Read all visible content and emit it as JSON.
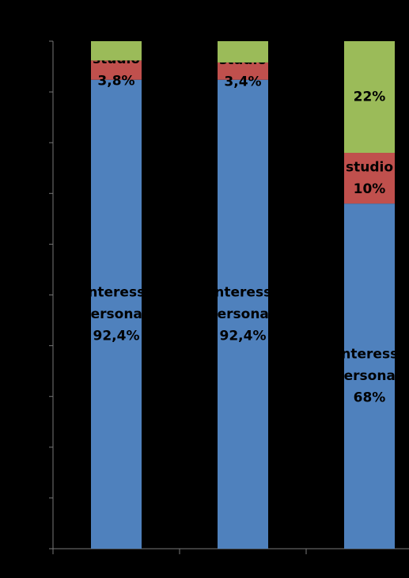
{
  "chart_data": {
    "type": "stacked_bar",
    "categories": [
      null,
      null,
      null
    ],
    "series": [
      {
        "name_lines": [
          "Interessi",
          "personali"
        ],
        "color": "#4f81bd",
        "values": [
          92.4,
          92.4,
          68
        ],
        "value_labels": [
          "92,4%",
          "92,4%",
          "68%"
        ]
      },
      {
        "name": "studio",
        "color": "#c0504d",
        "values": [
          3.8,
          3.4,
          10
        ],
        "value_labels": [
          "3,8%",
          "3,4%",
          "10%"
        ]
      },
      {
        "color": "#9bbb59",
        "values": [
          3.8,
          4.2,
          22
        ],
        "value_labels": [
          null,
          null,
          "22%"
        ]
      }
    ],
    "ylim": [
      0,
      100
    ],
    "yticks": [
      0,
      10,
      20,
      30,
      40,
      50,
      60,
      70,
      80,
      90,
      100
    ]
  }
}
